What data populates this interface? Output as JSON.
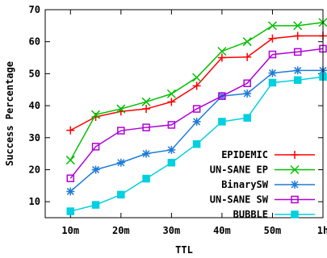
{
  "chart_data": {
    "type": "line",
    "xlabel": "TTL",
    "ylabel": "Success Percentage",
    "x_ticks": [
      "10m",
      "20m",
      "30m",
      "40m",
      "50m",
      "1h"
    ],
    "x": [
      10,
      15,
      20,
      25,
      30,
      35,
      40,
      45,
      50,
      55,
      60
    ],
    "xlim": [
      5,
      60
    ],
    "ylim": [
      5,
      70
    ],
    "y_ticks": [
      10,
      20,
      30,
      40,
      50,
      60,
      70
    ],
    "grid": false,
    "legend_position": "bottom-right",
    "series": [
      {
        "name": "EPIDEMIC",
        "color": "#ff0000",
        "marker": "plus",
        "values": [
          32.3,
          36.5,
          38.2,
          39,
          41.2,
          46.2,
          55,
          55.2,
          61,
          61.8,
          61.8
        ]
      },
      {
        "name": "UN-SANE EP",
        "color": "#00c000",
        "marker": "cross",
        "values": [
          23,
          37.2,
          39,
          41.2,
          43.7,
          48.8,
          57,
          60,
          65,
          65,
          66
        ]
      },
      {
        "name": "BinarySW",
        "color": "#1e7bd8",
        "marker": "star",
        "values": [
          13.2,
          20,
          22.2,
          25,
          26.2,
          35,
          43,
          43.8,
          50.2,
          51,
          51
        ]
      },
      {
        "name": "UN-SANE SW",
        "color": "#b000d8",
        "marker": "square",
        "values": [
          17.3,
          27.2,
          32.2,
          33.2,
          34,
          39,
          43,
          47,
          56,
          56.8,
          57.8
        ]
      },
      {
        "name": "BUBBLE",
        "color": "#00d0e0",
        "marker": "filled-square",
        "values": [
          7,
          9,
          12.2,
          17.2,
          22.2,
          28,
          35,
          36.2,
          47.2,
          48,
          49
        ]
      }
    ]
  }
}
